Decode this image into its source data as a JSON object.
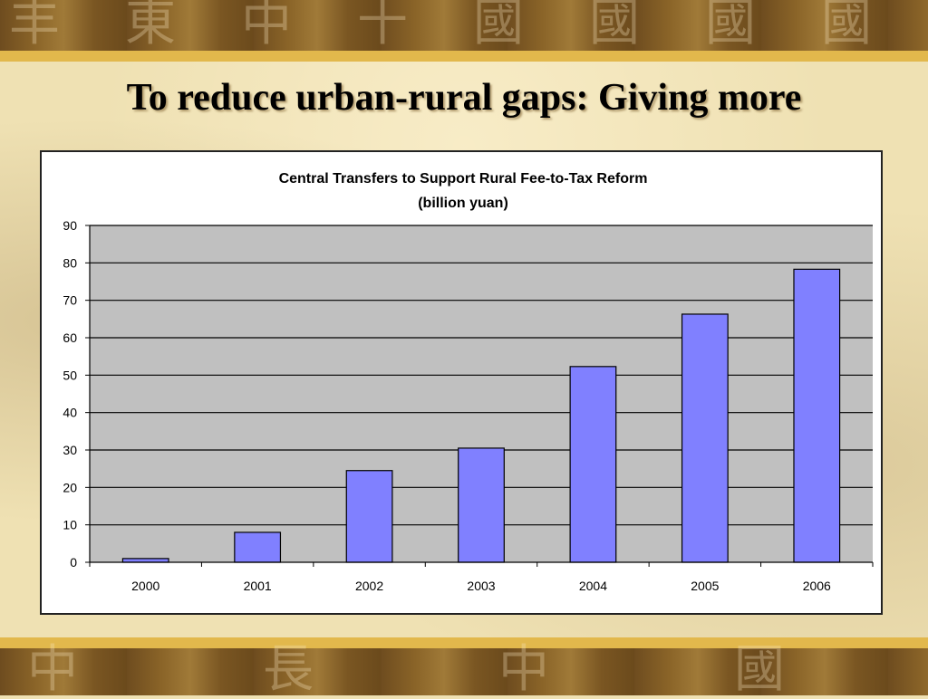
{
  "slide": {
    "title": "To reduce urban-rural gaps: Giving more"
  },
  "background": {
    "glyphs_top": [
      "丰",
      "東",
      "中",
      "十",
      "國",
      "國",
      "國",
      "國"
    ],
    "glyphs_bottom": [
      "中",
      "長",
      "中",
      "國"
    ]
  },
  "chart_data": {
    "type": "bar",
    "title": "Central Transfers to Support Rural Fee-to-Tax Reform",
    "subtitle": "(billion yuan)",
    "xlabel": "",
    "ylabel": "",
    "categories": [
      "2000",
      "2001",
      "2002",
      "2003",
      "2004",
      "2005",
      "2006"
    ],
    "values": [
      1,
      8,
      24.5,
      30.5,
      52.3,
      66.3,
      78.3
    ],
    "ylim": [
      0,
      90
    ],
    "yticks": [
      "0",
      "10",
      "20",
      "30",
      "40",
      "50",
      "60",
      "70",
      "80",
      "90"
    ],
    "grid": true,
    "legend": "none",
    "colors": {
      "bar": "#8080ff",
      "plot_bg": "#c0c0c0",
      "grid": "#000000"
    }
  }
}
